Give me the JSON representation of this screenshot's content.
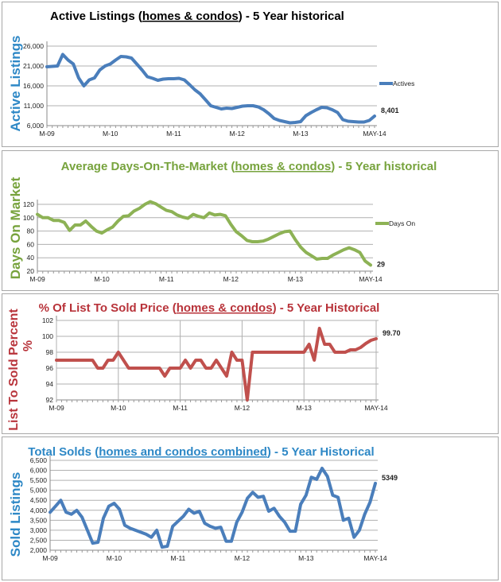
{
  "chart_data": [
    {
      "type": "line",
      "title_pre": "Active Listings (",
      "title_underlined": "homes & condos",
      "title_post": ") - 5 Year historical",
      "ylabel": "Active Listings",
      "legend": "Actives",
      "legend_position": "right",
      "end_label": "8,401",
      "color": "#4a7ebb",
      "title_color": "#000000",
      "ylabel_color": "#2e88c6",
      "ylim": [
        6000,
        26000
      ],
      "y_ticks": [
        6000,
        11000,
        16000,
        21000,
        26000
      ],
      "y_tick_labels": [
        "6,000",
        "11,000",
        "16,000",
        "21,000",
        "26,000"
      ],
      "x_tick_labels": [
        "M-09",
        "M-10",
        "M-11",
        "M-12",
        "M-13",
        "MAY-14"
      ],
      "grid": "horizontal",
      "values": [
        20800,
        20900,
        21000,
        23900,
        22500,
        21500,
        18000,
        16000,
        17500,
        18000,
        20000,
        21000,
        21500,
        22500,
        23400,
        23300,
        23000,
        21500,
        20000,
        18300,
        17900,
        17400,
        17700,
        17800,
        17800,
        17900,
        17500,
        16300,
        15000,
        14000,
        12500,
        11000,
        10600,
        10200,
        10400,
        10300,
        10600,
        10900,
        11000,
        11000,
        10700,
        10000,
        9000,
        7800,
        7300,
        7000,
        6700,
        6800,
        7000,
        8500,
        9300,
        10000,
        10600,
        10500,
        10000,
        9300,
        7500,
        7100,
        7000,
        6900,
        6900,
        7300,
        8401
      ]
    },
    {
      "type": "line",
      "title_pre": "Average Days-On-The-Market (",
      "title_underlined": "homes & condos",
      "title_post": ") - 5 Year historical",
      "ylabel": "Days On Market",
      "legend": "Days On",
      "legend_position": "right",
      "end_label": "29",
      "color": "#8db255",
      "title_color": "#77a33d",
      "ylabel_color": "#77a33d",
      "ylim": [
        20,
        120
      ],
      "y_ticks": [
        20,
        40,
        60,
        80,
        100,
        120
      ],
      "y_tick_labels": [
        "20",
        "40",
        "60",
        "80",
        "100",
        "120"
      ],
      "x_tick_labels": [
        "M-09",
        "M-10",
        "M-11",
        "M-12",
        "M-13",
        "MAY-14"
      ],
      "grid": "horizontal",
      "values": [
        105,
        100,
        100,
        96,
        96,
        93,
        81,
        89,
        89,
        95,
        87,
        80,
        77,
        82,
        86,
        95,
        102,
        103,
        110,
        114,
        120,
        124,
        121,
        116,
        111,
        109,
        104,
        101,
        99,
        105,
        102,
        100,
        107,
        104,
        105,
        103,
        90,
        79,
        73,
        66,
        64,
        64,
        65,
        68,
        72,
        76,
        79,
        80,
        67,
        56,
        48,
        43,
        38,
        39,
        39,
        44,
        48,
        52,
        55,
        52,
        48,
        35,
        29
      ]
    },
    {
      "type": "line",
      "title_pre": "% Of List To Sold Price (",
      "title_underlined": "homes & condos",
      "title_post": ") - 5 Year Historical",
      "ylabel": "List To Sold Percent",
      "ylabel_line2": "%",
      "end_label": "99.70",
      "color": "#c0504d",
      "title_color": "#b8333a",
      "ylabel_color": "#b8333a",
      "ylim": [
        92,
        102
      ],
      "y_ticks": [
        92,
        94,
        96,
        98,
        100,
        102
      ],
      "y_tick_labels": [
        "92",
        "94",
        "96",
        "98",
        "100",
        "102"
      ],
      "x_tick_labels": [
        "M-09",
        "M-10",
        "M-11",
        "M-12",
        "M-13",
        "MAY-14"
      ],
      "grid": "both",
      "values": [
        97,
        97,
        97,
        97,
        97,
        97,
        97,
        97,
        96,
        96,
        97,
        97,
        98,
        97,
        96,
        96,
        96,
        96,
        96,
        96,
        96,
        95,
        96,
        96,
        96,
        97,
        96,
        97,
        97,
        96,
        96,
        97,
        96,
        95,
        98,
        97,
        97,
        92,
        98,
        98,
        98,
        98,
        98,
        98,
        98,
        98,
        98,
        98,
        98,
        99,
        97,
        101,
        99,
        99,
        98,
        98,
        98,
        98.3,
        98.3,
        98.6,
        99.1,
        99.5,
        99.7
      ]
    },
    {
      "type": "line",
      "title_pre": "Total Solds (",
      "title_underlined": "homes and condos combined",
      "title_post": ") - 5 Year Historical",
      "ylabel": "Sold Listings",
      "end_label": "5349",
      "color": "#4a7ebb",
      "title_color": "#2e88c6",
      "ylabel_color": "#2e88c6",
      "ylim": [
        2000,
        6500
      ],
      "y_ticks": [
        2000,
        2500,
        3000,
        3500,
        4000,
        4500,
        5000,
        5500,
        6000,
        6500
      ],
      "y_tick_labels": [
        "2,000",
        "2,500",
        "3,000",
        "3,500",
        "4,000",
        "4,500",
        "5,000",
        "5,500",
        "6,000",
        "6,500"
      ],
      "x_tick_labels": [
        "M-09",
        "M-10",
        "M-11",
        "M-12",
        "M-13",
        "MAY-14"
      ],
      "grid": "horizontal",
      "values": [
        3900,
        4200,
        4500,
        3900,
        3800,
        4000,
        3650,
        3000,
        2350,
        2400,
        3600,
        4200,
        4350,
        4050,
        3250,
        3100,
        3000,
        2900,
        2800,
        2650,
        3000,
        2150,
        2200,
        3200,
        3450,
        3700,
        4050,
        3850,
        3950,
        3350,
        3200,
        3100,
        3150,
        2450,
        2450,
        3400,
        3900,
        4600,
        4900,
        4650,
        4700,
        3950,
        4100,
        3700,
        3400,
        2950,
        2950,
        4300,
        4750,
        5650,
        5550,
        6100,
        5700,
        4750,
        4650,
        3500,
        3600,
        2650,
        3000,
        3800,
        4400,
        5349
      ]
    }
  ]
}
